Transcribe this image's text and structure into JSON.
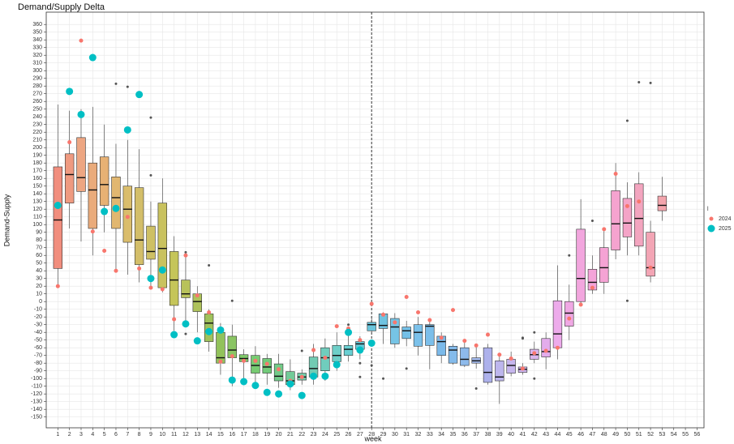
{
  "chart_data": {
    "type": "box",
    "title": "Demand/Supply Delta",
    "x_label": "week",
    "y_label": "Demand-Supply",
    "legend_title": "l",
    "x": [
      1,
      2,
      3,
      4,
      5,
      6,
      7,
      8,
      9,
      10,
      11,
      12,
      13,
      14,
      15,
      16,
      17,
      18,
      19,
      20,
      21,
      22,
      23,
      24,
      25,
      26,
      27,
      28,
      29,
      30,
      31,
      32,
      33,
      34,
      35,
      36,
      37,
      38,
      39,
      40,
      41,
      42,
      43,
      44,
      45,
      46,
      47,
      48,
      49,
      50,
      51,
      52,
      53
    ],
    "xlim": [
      0,
      56.6
    ],
    "xticks": [
      1,
      2,
      3,
      4,
      5,
      6,
      7,
      8,
      9,
      10,
      11,
      12,
      13,
      14,
      15,
      16,
      17,
      18,
      19,
      20,
      21,
      22,
      23,
      24,
      25,
      26,
      27,
      28,
      29,
      30,
      31,
      32,
      33,
      34,
      35,
      36,
      37,
      38,
      39,
      40,
      41,
      42,
      43,
      44,
      45,
      46,
      47,
      48,
      49,
      50,
      51,
      52,
      53,
      54,
      55,
      56
    ],
    "ylim": [
      -164,
      376
    ],
    "yticks": [
      -150,
      -140,
      -130,
      -120,
      -110,
      -100,
      -90,
      -80,
      -70,
      -60,
      -50,
      -40,
      -30,
      -20,
      -10,
      0,
      10,
      20,
      30,
      40,
      50,
      60,
      70,
      80,
      90,
      100,
      110,
      120,
      130,
      140,
      150,
      160,
      170,
      180,
      190,
      200,
      210,
      220,
      230,
      240,
      250,
      260,
      270,
      280,
      290,
      300,
      310,
      320,
      330,
      340,
      350,
      360
    ],
    "grid": true,
    "reference_line": 28,
    "boxes": [
      {
        "low": 20,
        "q1": 43,
        "median": 106,
        "q3": 175,
        "high": 256,
        "outliers": []
      },
      {
        "low": 95,
        "q1": 128,
        "median": 165,
        "q3": 192,
        "high": 248,
        "outliers": []
      },
      {
        "low": 78,
        "q1": 143,
        "median": 161,
        "q3": 213,
        "high": 250,
        "outliers": []
      },
      {
        "low": 60,
        "q1": 95,
        "median": 145,
        "q3": 180,
        "high": 253,
        "outliers": []
      },
      {
        "low": 90,
        "q1": 125,
        "median": 152,
        "q3": 188,
        "high": 230,
        "outliers": []
      },
      {
        "low": 40,
        "q1": 95,
        "median": 135,
        "q3": 162,
        "high": 205,
        "outliers": [
          283
        ]
      },
      {
        "low": 35,
        "q1": 77,
        "median": 120,
        "q3": 150,
        "high": 210,
        "outliers": [
          279
        ]
      },
      {
        "low": 25,
        "q1": 48,
        "median": 80,
        "q3": 148,
        "high": 198,
        "outliers": []
      },
      {
        "low": 20,
        "q1": 55,
        "median": 65,
        "q3": 98,
        "high": 130,
        "outliers": [
          239,
          164
        ]
      },
      {
        "low": 12,
        "q1": 18,
        "median": 69,
        "q3": 128,
        "high": 160,
        "outliers": []
      },
      {
        "low": -38,
        "q1": -5,
        "median": 28,
        "q3": 65,
        "high": 85,
        "outliers": []
      },
      {
        "low": -25,
        "q1": 5,
        "median": 10,
        "q3": 28,
        "high": 62,
        "outliers": [
          64,
          -42
        ]
      },
      {
        "low": -40,
        "q1": -13,
        "median": 0,
        "q3": 10,
        "high": 20,
        "outliers": []
      },
      {
        "low": -65,
        "q1": -52,
        "median": -28,
        "q3": -16,
        "high": -10,
        "outliers": [
          47
        ]
      },
      {
        "low": -95,
        "q1": -80,
        "median": -73,
        "q3": -40,
        "high": -28,
        "outliers": []
      },
      {
        "low": -110,
        "q1": -73,
        "median": -63,
        "q3": -45,
        "high": -30,
        "outliers": [
          1
        ]
      },
      {
        "low": -105,
        "q1": -78,
        "median": -74,
        "q3": -69,
        "high": -62,
        "outliers": []
      },
      {
        "low": -112,
        "q1": -93,
        "median": -83,
        "q3": -70,
        "high": -58,
        "outliers": []
      },
      {
        "low": -108,
        "q1": -93,
        "median": -85,
        "q3": -74,
        "high": -68,
        "outliers": []
      },
      {
        "low": -112,
        "q1": -103,
        "median": -97,
        "q3": -81,
        "high": -68,
        "outliers": []
      },
      {
        "low": -115,
        "q1": -108,
        "median": -103,
        "q3": -91,
        "high": -75,
        "outliers": []
      },
      {
        "low": -108,
        "q1": -102,
        "median": -98,
        "q3": -93,
        "high": -88,
        "outliers": [
          -64
        ]
      },
      {
        "low": -108,
        "q1": -98,
        "median": -87,
        "q3": -72,
        "high": -55,
        "outliers": []
      },
      {
        "low": -103,
        "q1": -90,
        "median": -73,
        "q3": -60,
        "high": -48,
        "outliers": []
      },
      {
        "low": -90,
        "q1": -78,
        "median": -70,
        "q3": -57,
        "high": -40,
        "outliers": []
      },
      {
        "low": -78,
        "q1": -70,
        "median": -62,
        "q3": -57,
        "high": -40,
        "outliers": [
          -30
        ]
      },
      {
        "low": -75,
        "q1": -62,
        "median": -55,
        "q3": -52,
        "high": -45,
        "outliers": [
          -80,
          -98
        ]
      },
      {
        "low": -40,
        "q1": -38,
        "median": -30,
        "q3": -27,
        "high": -20,
        "outliers": [
          -83
        ]
      },
      {
        "low": -55,
        "q1": -35,
        "median": -31,
        "q3": -16,
        "high": -14,
        "outliers": [
          -100
        ]
      },
      {
        "low": -60,
        "q1": -55,
        "median": -33,
        "q3": -22,
        "high": -15,
        "outliers": []
      },
      {
        "low": -58,
        "q1": -48,
        "median": -38,
        "q3": -33,
        "high": -25,
        "outliers": [
          -87
        ]
      },
      {
        "low": -70,
        "q1": -58,
        "median": -40,
        "q3": -30,
        "high": -20,
        "outliers": []
      },
      {
        "low": -88,
        "q1": -57,
        "median": -32,
        "q3": -30,
        "high": -25,
        "outliers": []
      },
      {
        "low": -80,
        "q1": -70,
        "median": -52,
        "q3": -45,
        "high": -40,
        "outliers": []
      },
      {
        "low": -82,
        "q1": -80,
        "median": -63,
        "q3": -58,
        "high": -55,
        "outliers": []
      },
      {
        "low": -85,
        "q1": -83,
        "median": -75,
        "q3": -60,
        "high": -50,
        "outliers": []
      },
      {
        "low": -87,
        "q1": -80,
        "median": -77,
        "q3": -73,
        "high": -58,
        "outliers": [
          -113
        ]
      },
      {
        "low": -108,
        "q1": -105,
        "median": -92,
        "q3": -60,
        "high": -55,
        "outliers": []
      },
      {
        "low": -133,
        "q1": -103,
        "median": -98,
        "q3": -77,
        "high": -70,
        "outliers": []
      },
      {
        "low": -97,
        "q1": -93,
        "median": -83,
        "q3": -75,
        "high": -65,
        "outliers": []
      },
      {
        "low": -95,
        "q1": -92,
        "median": -88,
        "q3": -85,
        "high": -80,
        "outliers": [
          -47,
          -48
        ]
      },
      {
        "low": -80,
        "q1": -75,
        "median": -69,
        "q3": -62,
        "high": -52,
        "outliers": [
          -40,
          -100
        ]
      },
      {
        "low": -88,
        "q1": -72,
        "median": -65,
        "q3": -48,
        "high": -40,
        "outliers": []
      },
      {
        "low": -75,
        "q1": -60,
        "median": -42,
        "q3": 1,
        "high": 47,
        "outliers": []
      },
      {
        "low": -50,
        "q1": -32,
        "median": -15,
        "q3": 0,
        "high": 22,
        "outliers": [
          60
        ]
      },
      {
        "low": -5,
        "q1": 0,
        "median": 30,
        "q3": 94,
        "high": 133,
        "outliers": []
      },
      {
        "low": 10,
        "q1": 15,
        "median": 25,
        "q3": 42,
        "high": 60,
        "outliers": [
          105
        ]
      },
      {
        "low": 10,
        "q1": 25,
        "median": 44,
        "q3": 70,
        "high": 95,
        "outliers": []
      },
      {
        "low": 55,
        "q1": 67,
        "median": 101,
        "q3": 144,
        "high": 180,
        "outliers": []
      },
      {
        "low": 60,
        "q1": 84,
        "median": 102,
        "q3": 134,
        "high": 155,
        "outliers": [
          235,
          1
        ]
      },
      {
        "low": 60,
        "q1": 72,
        "median": 108,
        "q3": 153,
        "high": 168,
        "outliers": [
          285
        ]
      },
      {
        "low": 25,
        "q1": 33,
        "median": 44,
        "q3": 90,
        "high": 105,
        "outliers": [
          284
        ]
      },
      {
        "low": 105,
        "q1": 118,
        "median": 125,
        "q3": 137,
        "high": 162,
        "outliers": []
      }
    ],
    "box_colors": [
      "hsl(8,80%,72%)",
      "hsl(14,78%,72%)",
      "hsl(20,75%,72%)",
      "hsl(26,72%,70%)",
      "hsl(32,70%,68%)",
      "hsl(38,65%,66%)",
      "hsl(44,60%,64%)",
      "hsl(48,55%,62%)",
      "hsl(52,52%,60%)",
      "hsl(56,50%,58%)",
      "hsl(60,48%,56%)",
      "hsl(66,46%,56%)",
      "hsl(72,46%,56%)",
      "hsl(80,46%,56%)",
      "hsl(88,46%,56%)",
      "hsl(96,46%,58%)",
      "hsl(106,46%,60%)",
      "hsl(116,46%,62%)",
      "hsl(126,46%,62%)",
      "hsl(136,46%,62%)",
      "hsl(146,46%,62%)",
      "hsl(156,46%,62%)",
      "hsl(164,46%,62%)",
      "hsl(170,48%,62%)",
      "hsl(176,50%,62%)",
      "hsl(182,55%,62%)",
      "hsl(188,60%,62%)",
      "hsl(192,62%,64%)",
      "hsl(196,65%,66%)",
      "hsl(198,68%,68%)",
      "hsl(200,70%,68%)",
      "hsl(202,72%,70%)",
      "hsl(204,72%,70%)",
      "hsl(206,72%,70%)",
      "hsl(208,72%,72%)",
      "hsl(212,70%,74%)",
      "hsl(222,65%,78%)",
      "hsl(236,60%,80%)",
      "hsl(248,60%,82%)",
      "hsl(258,60%,82%)",
      "hsl(268,60%,82%)",
      "hsl(280,60%,82%)",
      "hsl(292,62%,80%)",
      "hsl(302,65%,80%)",
      "hsl(310,70%,80%)",
      "hsl(316,75%,80%)",
      "hsl(320,78%,80%)",
      "hsl(324,80%,80%)",
      "hsl(328,80%,80%)",
      "hsl(334,78%,80%)",
      "hsl(340,76%,80%)",
      "hsl(348,76%,80%)",
      "hsl(354,76%,80%)"
    ],
    "series": [
      {
        "name": "2024",
        "color": "#F8766D",
        "values": [
          20,
          207,
          339,
          91,
          66,
          40,
          110,
          43,
          18,
          16,
          -23,
          60,
          8,
          -14,
          -78,
          -71,
          -77,
          -77,
          -81,
          -88,
          -103,
          -98,
          -63,
          -73,
          -32,
          -35,
          -50,
          -3,
          -17,
          -27,
          6,
          -14,
          -24,
          -47,
          -11,
          -51,
          -57,
          -43,
          -69,
          -74,
          -87,
          -67,
          -64,
          -60,
          -22,
          -4,
          18,
          94,
          166,
          124,
          130,
          44,
          null
        ]
      },
      {
        "name": "2025",
        "color": "#00BFC4",
        "values": [
          125,
          273,
          243,
          317,
          117,
          121,
          223,
          269,
          30,
          41,
          -43,
          -29,
          -51,
          -39,
          -37,
          -102,
          -104,
          -109,
          -118,
          -120,
          -107,
          -122,
          -97,
          -97,
          -82,
          -40,
          -63,
          -54,
          null,
          null,
          null,
          null,
          null,
          null,
          null,
          null,
          null,
          null,
          null,
          null,
          null,
          null,
          null,
          null,
          null,
          null,
          null,
          null,
          null,
          null,
          null,
          null,
          null
        ]
      }
    ]
  }
}
